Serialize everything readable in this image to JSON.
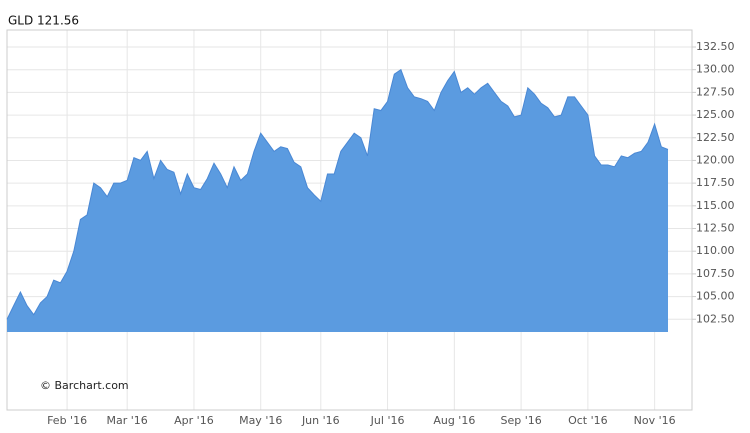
{
  "chart_data": {
    "type": "area",
    "title": "GLD 121.56",
    "attribution": "© Barchart.com",
    "color": "#5b9be0",
    "line_color": "#4a88d4",
    "grid": true,
    "categories": [
      null,
      null,
      null,
      null,
      null,
      null,
      null,
      null,
      null,
      "Feb '16",
      null,
      null,
      null,
      null,
      null,
      null,
      null,
      null,
      "Mar '16",
      null,
      null,
      null,
      null,
      null,
      null,
      null,
      null,
      null,
      "Apr '16",
      null,
      null,
      null,
      null,
      null,
      null,
      null,
      null,
      null,
      "May '16",
      null,
      null,
      null,
      null,
      null,
      null,
      null,
      null,
      "Jun '16",
      null,
      null,
      null,
      null,
      null,
      null,
      null,
      null,
      null,
      "Jul '16",
      null,
      null,
      null,
      null,
      null,
      null,
      null,
      null,
      null,
      "Aug '16",
      null,
      null,
      null,
      null,
      null,
      null,
      null,
      null,
      null,
      "Sep '16",
      null,
      null,
      null,
      null,
      null,
      null,
      null,
      null,
      null,
      "Oct '16",
      null,
      null,
      null,
      null,
      null,
      null,
      null,
      null,
      null,
      "Nov '16",
      null,
      null
    ],
    "values": [
      102.5,
      104,
      105.5,
      104,
      103,
      104.3,
      105,
      106.8,
      106.5,
      107.8,
      110,
      113.5,
      114,
      117.5,
      117,
      116,
      117.5,
      117.5,
      117.8,
      120.3,
      120,
      121,
      118,
      120,
      119,
      118.7,
      116.3,
      118.5,
      117,
      116.8,
      118,
      119.7,
      118.5,
      117,
      119.3,
      117.8,
      118.5,
      121,
      123,
      122,
      121,
      121.5,
      121.3,
      119.8,
      119.3,
      117,
      116.2,
      115.5,
      118.5,
      118.5,
      121,
      122,
      123,
      122.5,
      120.5,
      125.7,
      125.5,
      126.5,
      129.5,
      130,
      128,
      127,
      126.8,
      126.5,
      125.5,
      127.5,
      128.8,
      129.8,
      127.5,
      128,
      127.3,
      128,
      128.5,
      127.5,
      126.5,
      126,
      124.8,
      125,
      128,
      127.3,
      126.3,
      125.8,
      124.8,
      125,
      127,
      127,
      126,
      125,
      120.5,
      119.5,
      119.5,
      119.3,
      120.5,
      120.3,
      120.8,
      121,
      122,
      124,
      121.5,
      121.2
    ],
    "ylim": [
      92.5,
      132.5
    ],
    "yticks": [
      {
        "value": 102.5,
        "label": "102.50"
      },
      {
        "value": 105,
        "label": "105.00"
      },
      {
        "value": 107.5,
        "label": "107.50"
      },
      {
        "value": 110,
        "label": "110.00"
      },
      {
        "value": 112.5,
        "label": "112.50"
      },
      {
        "value": 115,
        "label": "115.00"
      },
      {
        "value": 117.5,
        "label": "117.50"
      },
      {
        "value": 120,
        "label": "120.00"
      },
      {
        "value": 122.5,
        "label": "122.50"
      },
      {
        "value": 125,
        "label": "125.00"
      },
      {
        "value": 127.5,
        "label": "127.50"
      },
      {
        "value": 130,
        "label": "130.00"
      },
      {
        "value": 132.5,
        "label": "132.50"
      }
    ]
  }
}
